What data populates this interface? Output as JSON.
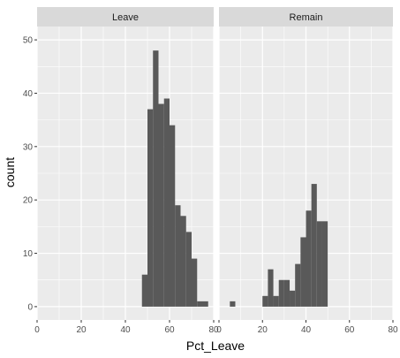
{
  "chart_data": {
    "type": "bar",
    "subtype": "faceted-histogram",
    "xlabel": "Pct_Leave",
    "ylabel": "count",
    "xlim": [
      0,
      80
    ],
    "ylim": [
      -2.5,
      52.5
    ],
    "x_ticks": [
      "0",
      "20",
      "40",
      "60",
      "80"
    ],
    "y_ticks": [
      "0",
      "10",
      "20",
      "30",
      "40",
      "50"
    ],
    "x_tick_values": [
      0,
      20,
      40,
      60,
      80
    ],
    "y_tick_values": [
      0,
      10,
      20,
      30,
      40,
      50
    ],
    "grid": true,
    "bin_width": 2.5,
    "colors": {
      "panel_bg": "#ebebeb",
      "strip_bg": "#d9d9d9",
      "grid": "#ffffff",
      "bar": "#595959"
    },
    "facets": [
      {
        "name": "Leave",
        "bins": [
          {
            "x": 48.75,
            "count": 6
          },
          {
            "x": 51.25,
            "count": 37
          },
          {
            "x": 53.75,
            "count": 48
          },
          {
            "x": 56.25,
            "count": 38
          },
          {
            "x": 58.75,
            "count": 39
          },
          {
            "x": 61.25,
            "count": 34
          },
          {
            "x": 63.75,
            "count": 19
          },
          {
            "x": 66.25,
            "count": 17
          },
          {
            "x": 68.75,
            "count": 14
          },
          {
            "x": 71.25,
            "count": 9
          },
          {
            "x": 73.75,
            "count": 1
          },
          {
            "x": 76.25,
            "count": 1
          }
        ]
      },
      {
        "name": "Remain",
        "bins": [
          {
            "x": 6.25,
            "count": 1
          },
          {
            "x": 21.25,
            "count": 2
          },
          {
            "x": 23.75,
            "count": 7
          },
          {
            "x": 26.25,
            "count": 2
          },
          {
            "x": 28.75,
            "count": 5
          },
          {
            "x": 31.25,
            "count": 5
          },
          {
            "x": 33.75,
            "count": 3
          },
          {
            "x": 36.25,
            "count": 8
          },
          {
            "x": 38.75,
            "count": 13
          },
          {
            "x": 41.25,
            "count": 18
          },
          {
            "x": 43.75,
            "count": 23
          },
          {
            "x": 46.25,
            "count": 16
          },
          {
            "x": 48.75,
            "count": 16
          }
        ]
      }
    ]
  }
}
